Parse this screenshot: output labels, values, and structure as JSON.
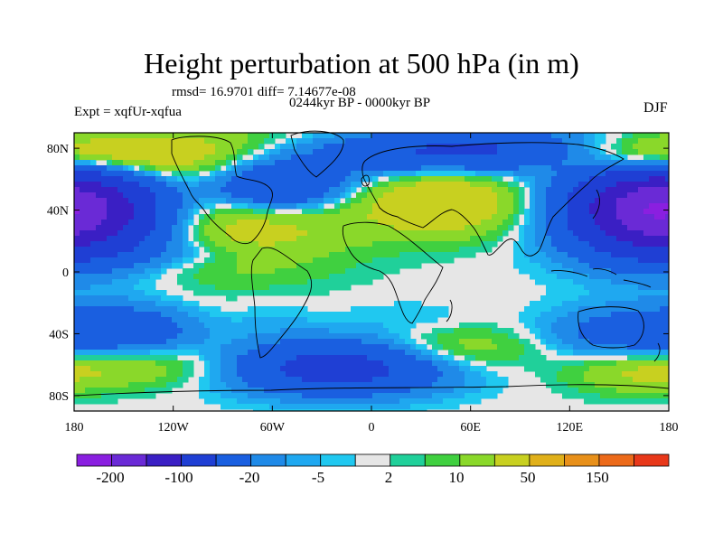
{
  "title": "Height perturbation at 500 hPa (in m)",
  "stats_line": "rmsd= 16.9701 diff= 7.14677e-08",
  "period_line": "0244kyr BP - 0000kyr BP",
  "experiment_line": "Expt = xqfUr-xqfua",
  "season": "DJF",
  "map": {
    "lon_range": [
      -180,
      180
    ],
    "lat_range": [
      -90,
      90
    ],
    "lat_ticks": [
      {
        "value": 80,
        "label": "80N"
      },
      {
        "value": 40,
        "label": "40N"
      },
      {
        "value": 0,
        "label": "0"
      },
      {
        "value": -40,
        "label": "40S"
      },
      {
        "value": -80,
        "label": "80S"
      }
    ],
    "lon_ticks": [
      {
        "value": -180,
        "label": "180"
      },
      {
        "value": -120,
        "label": "120W"
      },
      {
        "value": -60,
        "label": "60W"
      },
      {
        "value": 0,
        "label": "0"
      },
      {
        "value": 60,
        "label": "60E"
      },
      {
        "value": 120,
        "label": "120E"
      },
      {
        "value": 180,
        "label": "180"
      }
    ],
    "neutral_color": "#e6e6e6",
    "fields": [
      {
        "lon": -170,
        "lat": 40,
        "value": -120,
        "spread_lon": 45,
        "spread_lat": 22
      },
      {
        "lon": -100,
        "lat": 45,
        "value": 55,
        "spread_lon": 55,
        "spread_lat": 28
      },
      {
        "lon": -60,
        "lat": 55,
        "value": -80,
        "spread_lon": 32,
        "spread_lat": 12
      },
      {
        "lon": -165,
        "lat": 75,
        "value": 30,
        "spread_lon": 50,
        "spread_lat": 10
      },
      {
        "lon": 10,
        "lat": 75,
        "value": -30,
        "spread_lon": 60,
        "spread_lat": 10
      },
      {
        "lon": 45,
        "lat": 45,
        "value": 40,
        "spread_lon": 35,
        "spread_lat": 15
      },
      {
        "lon": 70,
        "lat": 80,
        "value": -40,
        "spread_lon": 50,
        "spread_lat": 10
      },
      {
        "lon": 170,
        "lat": 40,
        "value": -110,
        "spread_lon": 30,
        "spread_lat": 18
      },
      {
        "lon": 170,
        "lat": 75,
        "value": 25,
        "spread_lon": 40,
        "spread_lat": 10
      },
      {
        "lon": -110,
        "lat": 12,
        "value": -10,
        "spread_lon": 35,
        "spread_lat": 6
      },
      {
        "lon": -150,
        "lat": -38,
        "value": -40,
        "spread_lon": 30,
        "spread_lat": 12
      },
      {
        "lon": -140,
        "lat": -60,
        "value": 20,
        "spread_lon": 40,
        "spread_lat": 10
      },
      {
        "lon": -20,
        "lat": -62,
        "value": -70,
        "spread_lon": 45,
        "spread_lat": 12
      },
      {
        "lon": -60,
        "lat": -30,
        "value": -5,
        "spread_lon": 20,
        "spread_lat": 10
      },
      {
        "lon": 50,
        "lat": -50,
        "value": 20,
        "spread_lon": 35,
        "spread_lat": 10
      },
      {
        "lon": 150,
        "lat": -40,
        "value": -30,
        "spread_lon": 30,
        "spread_lat": 12
      },
      {
        "lon": 20,
        "lat": -30,
        "value": -5,
        "spread_lon": 30,
        "spread_lat": 8
      },
      {
        "lon": 160,
        "lat": -65,
        "value": 20,
        "spread_lon": 30,
        "spread_lat": 10
      }
    ]
  },
  "colorbar": {
    "colors": [
      "#8a1fe0",
      "#6a2ad6",
      "#3a1fc4",
      "#1f3fd4",
      "#1a5fe0",
      "#1f8ae8",
      "#1fa8f0",
      "#20c8f0",
      "#e6e6e6",
      "#20d09a",
      "#40d040",
      "#8ad82a",
      "#c8d020",
      "#e0b01a",
      "#e8901a",
      "#ec6a1a",
      "#e8381a"
    ],
    "labels": [
      "-200",
      "-100",
      "-20",
      "-5",
      "2",
      "10",
      "50",
      "150"
    ]
  }
}
